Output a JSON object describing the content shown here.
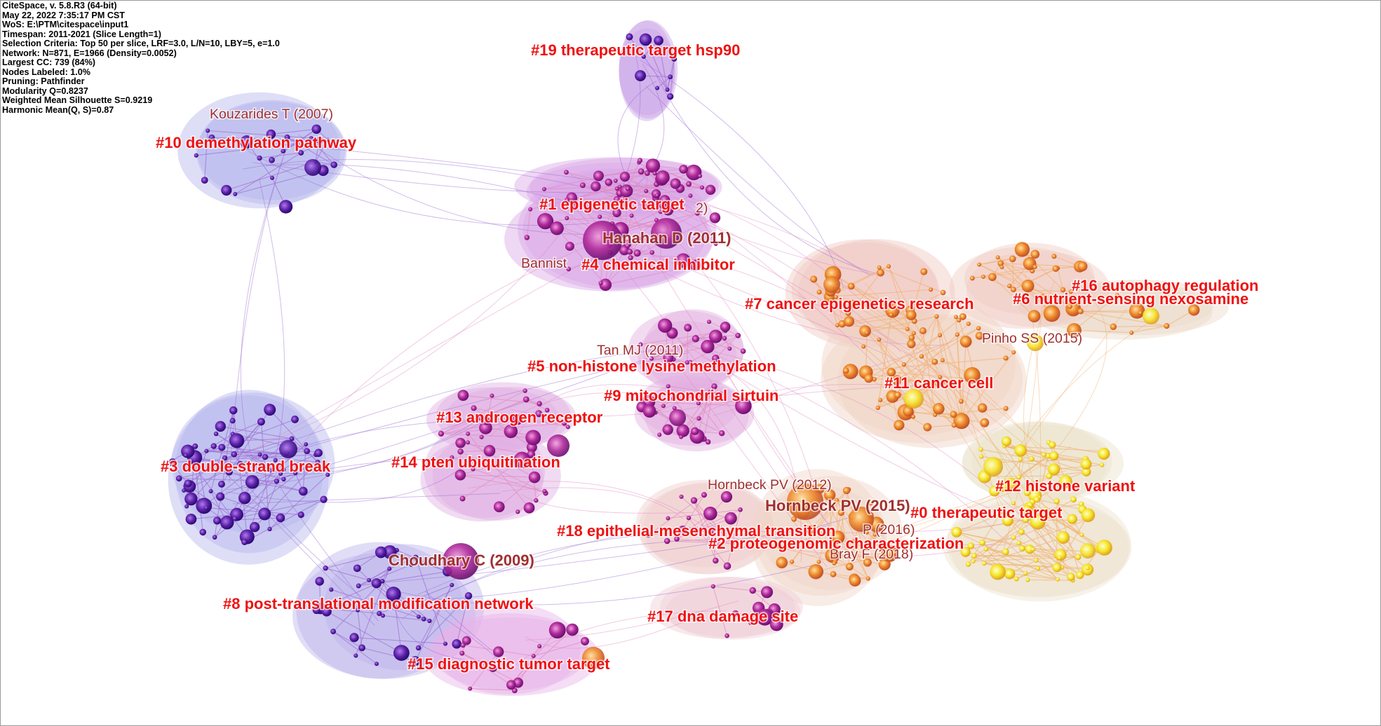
{
  "info": {
    "lines": [
      "CiteSpace, v. 5.8.R3 (64-bit)",
      "May 22, 2022 7:35:17 PM CST",
      "WoS: E:\\PTM\\citespace\\input1",
      "Timespan: 2011-2021 (Slice Length=1)",
      "Selection Criteria: Top 50 per slice, LRF=3.0, L/N=10, LBY=5, e=1.0",
      "Network: N=871, E=1966 (Density=0.0052)",
      "Largest CC: 739 (84%)",
      "Nodes Labeled: 1.0%",
      "Pruning: Pathfinder",
      "Modularity Q=0.8237",
      "Weighted Mean Silhouette S=0.9219",
      "Harmonic Mean(Q, S)=0.87"
    ]
  },
  "clusters": [
    {
      "id": "c19",
      "label": "#19 therapeutic target hsp90",
      "color": "#c9a4e6"
    },
    {
      "id": "c10",
      "label": "#10 demethylation pathway",
      "color": "#b5b5ee"
    },
    {
      "id": "c1",
      "label": "#1 epigenetic target",
      "color": "#d9a8e6"
    },
    {
      "id": "c4",
      "label": "#4 chemical inhibitor",
      "color": "#d9a8e6"
    },
    {
      "id": "c7",
      "label": "#7 cancer epigenetics research",
      "color": "#efc8c0"
    },
    {
      "id": "c16",
      "label": "#16 autophagy regulation",
      "color": "#ecd9c9"
    },
    {
      "id": "c6",
      "label": "#6 nutrient-sensing nexosamine",
      "color": "#efcdc4"
    },
    {
      "id": "c5",
      "label": "#5 non-histone lysine methylation",
      "color": "#e2b0e0"
    },
    {
      "id": "c11",
      "label": "#11 cancer cell",
      "color": "#efd2c4"
    },
    {
      "id": "c9",
      "label": "#9 mitochondrial sirtuin",
      "color": "#e2b0e0"
    },
    {
      "id": "c13",
      "label": "#13 androgen receptor",
      "color": "#dfb0e2"
    },
    {
      "id": "c3",
      "label": "#3 double-strand break",
      "color": "#b5b5ee"
    },
    {
      "id": "c14",
      "label": "#14 pten ubiquitination",
      "color": "#dfb0e2"
    },
    {
      "id": "c12",
      "label": "#12 histone variant",
      "color": "#ece2cd"
    },
    {
      "id": "c0",
      "label": "#0 therapeutic target",
      "color": "#eee3cf"
    },
    {
      "id": "c18",
      "label": "#18 epithelial-mesenchymal transition",
      "color": "#efcfcf"
    },
    {
      "id": "c2",
      "label": "#2 proteogenomic characterization",
      "color": "#efd4c8"
    },
    {
      "id": "c8",
      "label": "#8 post-translational modification network",
      "color": "#bdb3ec"
    },
    {
      "id": "c17",
      "label": "#17 dna damage site",
      "color": "#efcfd6"
    },
    {
      "id": "c15",
      "label": "#15 diagnostic tumor target",
      "color": "#e6b4e8"
    }
  ],
  "references": [
    {
      "id": "r1",
      "label": "Kouzarides T (2007)"
    },
    {
      "id": "r2",
      "label": "2)"
    },
    {
      "id": "r3",
      "label": "Hanahan D (2011)"
    },
    {
      "id": "r4",
      "label": "Bannist"
    },
    {
      "id": "r5",
      "label": "Pinho SS (2015)"
    },
    {
      "id": "r6",
      "label": "Tan MJ (2011)"
    },
    {
      "id": "r7",
      "label": "Hornbeck PV (2012)"
    },
    {
      "id": "r8",
      "label": "Hornbeck PV (2015)"
    },
    {
      "id": "r9",
      "label": "P (2016)"
    },
    {
      "id": "r10",
      "label": "Bray F (2018)"
    },
    {
      "id": "r11",
      "label": "Choudhary C (2009)"
    }
  ],
  "colors": {
    "purple_node": "#5a1fa8",
    "magenta_node": "#b02a9a",
    "orange_node": "#ee8a2a",
    "yellow_node": "#f5e62a",
    "link_purple": "#9a6ad0",
    "link_pink": "#e08ac0",
    "link_orange": "#f0b070",
    "label_red": "#ee1111",
    "ref_label": "#a03030"
  }
}
